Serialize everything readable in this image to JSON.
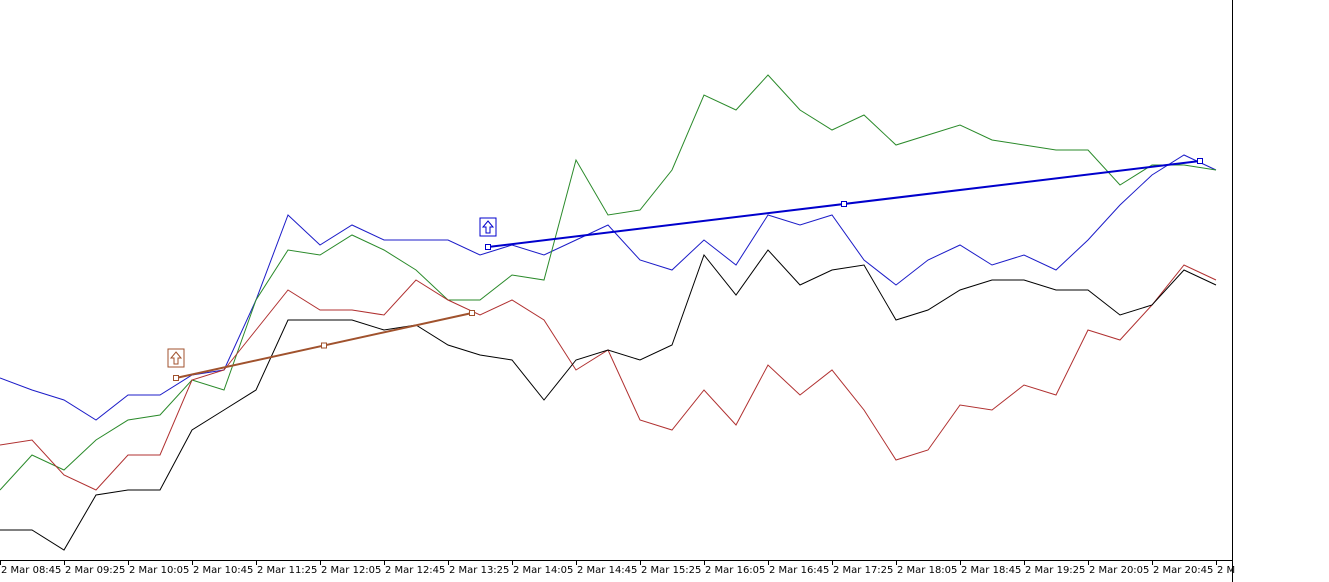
{
  "chart_data": {
    "type": "line",
    "categories": [
      "2 Mar 08:45",
      null,
      "2 Mar 09:25",
      null,
      "2 Mar 10:05",
      null,
      "2 Mar 10:45",
      null,
      "2 Mar 11:25",
      null,
      "2 Mar 12:05",
      null,
      "2 Mar 12:45",
      null,
      "2 Mar 13:25",
      null,
      "2 Mar 14:05",
      null,
      "2 Mar 14:45",
      null,
      "2 Mar 15:25",
      null,
      "2 Mar 16:05",
      null,
      "2 Mar 16:45",
      null,
      "2 Mar 17:25",
      null,
      "2 Mar 18:05",
      null,
      "2 Mar 18:45",
      null,
      "2 Mar 19:25",
      null,
      "2 Mar 20:05",
      null,
      "2 Mar 20:45",
      null,
      "2 M"
    ],
    "ylim": [
      0,
      560
    ],
    "series": [
      {
        "color": "#1c1cc8",
        "values": [
          182,
          170,
          160,
          140,
          165,
          165,
          185,
          190,
          260,
          345,
          315,
          335,
          320,
          320,
          320,
          305,
          315,
          305,
          320,
          335,
          300,
          290,
          320,
          295,
          345,
          335,
          345,
          300,
          275,
          300,
          315,
          295,
          305,
          290,
          320,
          355,
          385,
          405,
          390
        ]
      },
      {
        "color": "#2a8a2a",
        "values": [
          70,
          105,
          90,
          120,
          140,
          145,
          180,
          170,
          260,
          310,
          305,
          325,
          310,
          290,
          260,
          260,
          285,
          280,
          400,
          345,
          350,
          390,
          465,
          450,
          485,
          450,
          430,
          445,
          415,
          425,
          435,
          420,
          415,
          410,
          410,
          375,
          395,
          395,
          390
        ]
      },
      {
        "color": "#b03030",
        "values": [
          115,
          120,
          85,
          70,
          105,
          105,
          180,
          190,
          230,
          270,
          250,
          250,
          245,
          280,
          260,
          245,
          260,
          240,
          190,
          210,
          140,
          130,
          170,
          135,
          195,
          165,
          190,
          150,
          100,
          110,
          155,
          150,
          175,
          165,
          230,
          220,
          255,
          295,
          280
        ]
      },
      {
        "color": "#000000",
        "values": [
          30,
          30,
          10,
          65,
          70,
          70,
          130,
          150,
          170,
          240,
          240,
          240,
          230,
          235,
          215,
          205,
          200,
          160,
          200,
          210,
          200,
          215,
          305,
          265,
          310,
          275,
          290,
          295,
          240,
          250,
          270,
          280,
          280,
          270,
          270,
          245,
          255,
          290,
          275
        ]
      }
    ],
    "trendlines": [
      {
        "color": "#a0522d",
        "x": [
          5.5,
          14.75
        ],
        "y": [
          182,
          247
        ]
      },
      {
        "color": "#0000cc",
        "x": [
          15.25,
          37.5
        ],
        "y": [
          313,
          399
        ]
      }
    ]
  }
}
